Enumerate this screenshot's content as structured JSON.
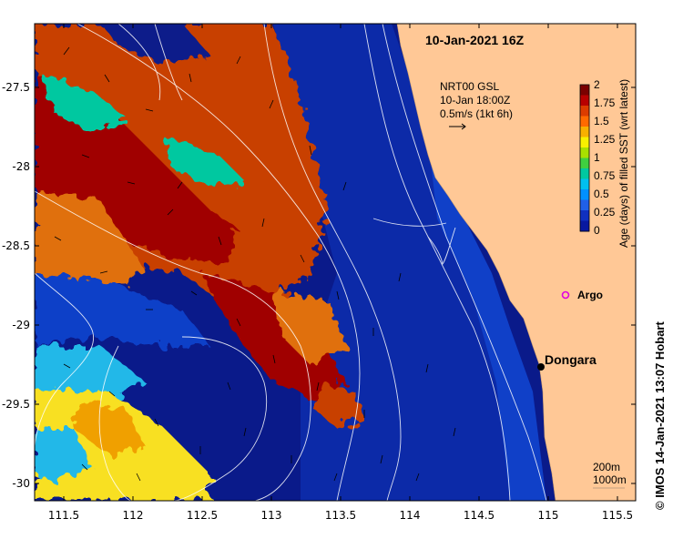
{
  "map": {
    "date_title": "10-Jan-2021 16Z",
    "x_ticks": [
      "111.5",
      "112",
      "112.5",
      "113",
      "113.5",
      "114",
      "114.5",
      "115",
      "115.5"
    ],
    "y_ticks": [
      "-27.5",
      "-28",
      "-28.5",
      "-29",
      "-29.5",
      "-30"
    ],
    "current_legend": {
      "line1": "NRT00 GSL",
      "line2": "10-Jan 18:00Z",
      "line3": "0.5m/s (1kt 6h)"
    },
    "colorbar": {
      "label": "Age (days) of filled SST (wrt latest)",
      "ticks": [
        "2",
        "1.75",
        "1.5",
        "1.25",
        "1",
        "0.75",
        "0.5",
        "0.25",
        "0"
      ],
      "colors": [
        "#7a0000",
        "#b80000",
        "#dc3c00",
        "#ff6a00",
        "#f8b000",
        "#f8f000",
        "#a8e000",
        "#40d040",
        "#00c8a0",
        "#00c0f0",
        "#0090ff",
        "#2060e8",
        "#1030c0",
        "#0818a0"
      ]
    },
    "places": {
      "city": "Dongara",
      "float": "Argo"
    },
    "contour_labels": {
      "shallow": "200m",
      "deep": "1000m"
    },
    "credit": "© IMOS 14-Jan-2021 13:07 Hobart",
    "colors": {
      "land": "#ffc896",
      "ocean_base": "#0a1a8a",
      "ocean_mid": "#1040c8",
      "warm_dark": "#a00000",
      "warm_mid": "#c84000",
      "warm_orange": "#e07010",
      "cyan": "#20b8e8",
      "yellow": "#f8e020",
      "argo": "#e000e0"
    }
  }
}
